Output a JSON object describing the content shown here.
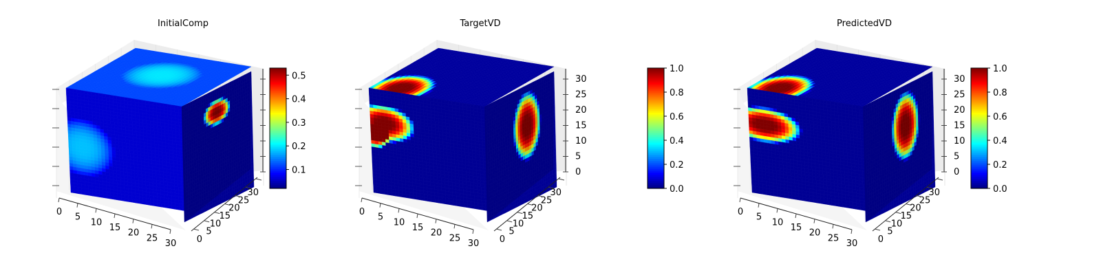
{
  "chart_data": [
    {
      "type": "heatmap",
      "title": "InitialComp",
      "axes": {
        "x_ticks": [
          "0",
          "5",
          "10",
          "15",
          "20",
          "25",
          "30"
        ],
        "y_ticks": [
          "0",
          "5",
          "10",
          "15",
          "20",
          "25",
          "30"
        ],
        "z_ticks": []
      },
      "colorbar": {
        "min": 0.02,
        "max": 0.53,
        "ticks": [
          "0.1",
          "0.2",
          "0.3",
          "0.4",
          "0.5"
        ],
        "tick_values": [
          0.1,
          0.2,
          0.3,
          0.4,
          0.5
        ]
      },
      "colormap": "jet",
      "faces": {
        "top": {
          "base": 0.12,
          "blobs": [
            {
              "u": 0.5,
              "v": 0.55,
              "r": 0.3,
              "amp": 0.08
            }
          ]
        },
        "front": {
          "base": 0.06,
          "blobs": [
            {
              "u": 0.12,
              "v": 0.55,
              "r": 0.28,
              "amp": 0.12
            }
          ]
        },
        "right": {
          "base": 0.03,
          "blobs": [
            {
              "u": 0.5,
              "v": 0.2,
              "r": 0.14,
              "amp": 0.5,
              "sx": 1.4,
              "sy": 0.8
            }
          ]
        }
      }
    },
    {
      "type": "heatmap",
      "title": "TargetVD",
      "axes": {
        "x_ticks": [
          "0",
          "5",
          "10",
          "15",
          "20",
          "25",
          "30"
        ],
        "y_ticks": [
          "0",
          "5",
          "10",
          "15",
          "20",
          "25",
          "30"
        ],
        "z_ticks": [
          "0",
          "5",
          "10",
          "15",
          "20",
          "25",
          "30"
        ]
      },
      "colorbar": {
        "min": 0.0,
        "max": 1.0,
        "ticks": [
          "0.0",
          "0.2",
          "0.4",
          "0.6",
          "0.8",
          "1.0"
        ],
        "tick_values": [
          0.0,
          0.2,
          0.4,
          0.6,
          0.8,
          1.0
        ]
      },
      "colormap": "jet",
      "faces": {
        "top": {
          "base": 0.03,
          "blobs": [
            {
              "u": 0.22,
              "v": 0.1,
              "r": 0.24,
              "amp": 1.0,
              "sx": 1.0,
              "sy": 1.3
            }
          ]
        },
        "front": {
          "base": 0.02,
          "blobs": [
            {
              "u": 0.12,
              "v": 0.32,
              "r": 0.18,
              "amp": 1.0,
              "sx": 1.5,
              "sy": 1.0
            },
            {
              "u": 0.04,
              "v": 0.45,
              "r": 0.12,
              "amp": 1.0
            }
          ]
        },
        "right": {
          "base": 0.02,
          "blobs": [
            {
              "u": 0.6,
              "v": 0.35,
              "r": 0.2,
              "amp": 1.0,
              "sx": 1.0,
              "sy": 1.5
            }
          ]
        }
      }
    },
    {
      "type": "heatmap",
      "title": "PredictedVD",
      "axes": {
        "x_ticks": [
          "0",
          "5",
          "10",
          "15",
          "20",
          "25",
          "30"
        ],
        "y_ticks": [
          "0",
          "5",
          "10",
          "15",
          "20",
          "25",
          "30"
        ],
        "z_ticks": [
          "0",
          "5",
          "10",
          "15",
          "20",
          "25",
          "30"
        ]
      },
      "colorbar": {
        "min": 0.0,
        "max": 1.0,
        "ticks": [
          "0.0",
          "0.2",
          "0.4",
          "0.6",
          "0.8",
          "1.0"
        ],
        "tick_values": [
          0.0,
          0.2,
          0.4,
          0.6,
          0.8,
          1.0
        ]
      },
      "colormap": "jet",
      "faces": {
        "top": {
          "base": 0.03,
          "blobs": [
            {
              "u": 0.22,
              "v": 0.1,
              "r": 0.24,
              "amp": 1.0,
              "sx": 1.0,
              "sy": 1.3
            }
          ]
        },
        "front": {
          "base": 0.02,
          "blobs": [
            {
              "u": 0.14,
              "v": 0.33,
              "r": 0.2,
              "amp": 1.0,
              "sx": 1.6,
              "sy": 0.85
            }
          ]
        },
        "right": {
          "base": 0.02,
          "blobs": [
            {
              "u": 0.6,
              "v": 0.35,
              "r": 0.2,
              "amp": 1.0,
              "sx": 1.0,
              "sy": 1.5
            }
          ]
        }
      }
    }
  ]
}
